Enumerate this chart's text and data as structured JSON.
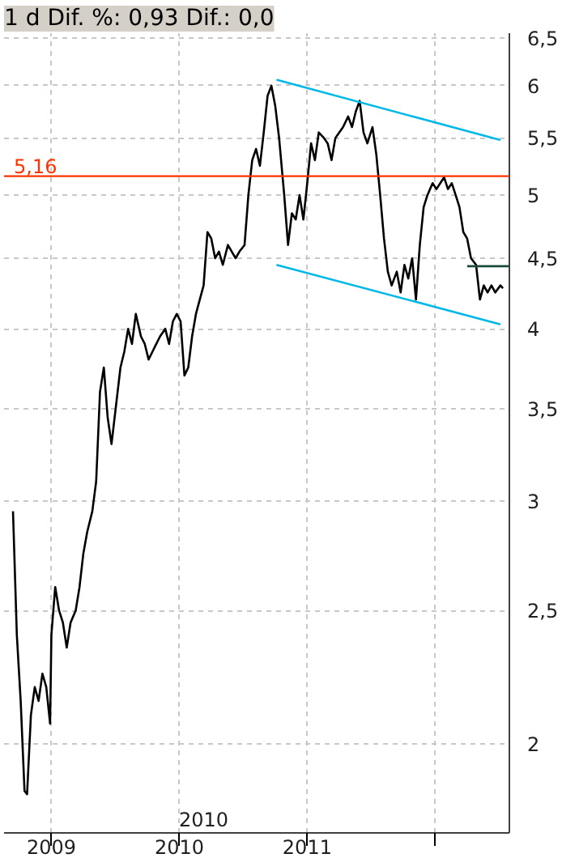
{
  "chart_data": {
    "type": "line",
    "title": "1 d Dif. %: 0,93 Dif.: 0,0",
    "log": "y",
    "grid": true,
    "xlim": [
      2008.63,
      2012.58
    ],
    "ylim": [
      1.725,
      6.55
    ],
    "xticks": [
      {
        "value": 2009,
        "label": "2009"
      },
      {
        "value": 2010,
        "label": "2010"
      },
      {
        "value": 2011,
        "label": "2011"
      },
      {
        "value": 2012,
        "label": null
      }
    ],
    "yticks": [
      {
        "value": 2,
        "label": "2"
      },
      {
        "value": 2.5,
        "label": "2,5"
      },
      {
        "value": 3,
        "label": "3"
      },
      {
        "value": 3.5,
        "label": "3,5"
      },
      {
        "value": 4,
        "label": "4"
      },
      {
        "value": 4.5,
        "label": "4,5"
      },
      {
        "value": 5,
        "label": "5"
      },
      {
        "value": 5.5,
        "label": "5,5"
      },
      {
        "value": 6,
        "label": "6"
      },
      {
        "value": 6.5,
        "label": "6,5"
      }
    ],
    "ref_lines": [
      {
        "axis": "y",
        "value": 5.16,
        "label": "5,16",
        "color": "#ff3300"
      }
    ],
    "annotations": [
      "2010"
    ],
    "series": [
      {
        "color": "#000000",
        "x": [
          2008.7,
          2008.73,
          2008.76,
          2008.79,
          2008.81,
          2008.84,
          2008.87,
          2008.9,
          2008.93,
          2008.96,
          2008.99,
          2009.0,
          2009.03,
          2009.06,
          2009.09,
          2009.12,
          2009.15,
          2009.19,
          2009.22,
          2009.25,
          2009.28,
          2009.32,
          2009.35,
          2009.38,
          2009.41,
          2009.44,
          2009.47,
          2009.51,
          2009.54,
          2009.57,
          2009.6,
          2009.63,
          2009.66,
          2009.7,
          2009.73,
          2009.76,
          2009.79,
          2009.82,
          2009.85,
          2009.89,
          2009.92,
          2009.95,
          2009.98,
          2010.01,
          2010.04,
          2010.07,
          2010.1,
          2010.13,
          2010.16,
          2010.19,
          2010.22,
          2010.25,
          2010.28,
          2010.31,
          2010.34,
          2010.38,
          2010.41,
          2010.44,
          2010.47,
          2010.51,
          2010.54,
          2010.57,
          2010.6,
          2010.63,
          2010.66,
          2010.69,
          2010.72,
          2010.75,
          2010.78,
          2010.82,
          2010.85,
          2010.88,
          2010.91,
          2010.94,
          2010.97,
          2011.0,
          2011.03,
          2011.06,
          2011.09,
          2011.13,
          2011.16,
          2011.19,
          2011.22,
          2011.25,
          2011.28,
          2011.32,
          2011.35,
          2011.38,
          2011.41,
          2011.44,
          2011.47,
          2011.51,
          2011.54,
          2011.57,
          2011.6,
          2011.63,
          2011.66,
          2011.7,
          2011.73,
          2011.76,
          2011.79,
          2011.82,
          2011.85,
          2011.88,
          2011.91,
          2011.94,
          2011.98,
          2012.01,
          2012.04,
          2012.07,
          2012.1,
          2012.13,
          2012.16,
          2012.19,
          2012.22,
          2012.25,
          2012.28,
          2012.32,
          2012.35,
          2012.38,
          2012.41,
          2012.44,
          2012.47,
          2012.51,
          2012.53
        ],
        "values": [
          2.95,
          2.4,
          2.15,
          1.85,
          1.84,
          2.1,
          2.2,
          2.15,
          2.25,
          2.2,
          2.07,
          2.4,
          2.6,
          2.5,
          2.45,
          2.35,
          2.45,
          2.5,
          2.6,
          2.75,
          2.85,
          2.95,
          3.1,
          3.6,
          3.75,
          3.45,
          3.3,
          3.55,
          3.75,
          3.85,
          4.0,
          3.9,
          4.1,
          3.95,
          3.9,
          3.8,
          3.85,
          3.9,
          3.95,
          4.0,
          3.9,
          4.05,
          4.1,
          4.05,
          3.7,
          3.75,
          3.95,
          4.1,
          4.2,
          4.3,
          4.7,
          4.65,
          4.5,
          4.55,
          4.45,
          4.6,
          4.55,
          4.5,
          4.55,
          4.6,
          5.0,
          5.3,
          5.4,
          5.25,
          5.55,
          5.9,
          6.0,
          5.8,
          5.5,
          5.0,
          4.6,
          4.85,
          4.8,
          5.0,
          4.8,
          5.1,
          5.45,
          5.3,
          5.55,
          5.5,
          5.45,
          5.3,
          5.5,
          5.55,
          5.6,
          5.7,
          5.6,
          5.75,
          5.85,
          5.55,
          5.45,
          5.6,
          5.35,
          5.0,
          4.65,
          4.4,
          4.3,
          4.4,
          4.25,
          4.45,
          4.35,
          4.5,
          4.2,
          4.6,
          4.9,
          5.0,
          5.1,
          5.05,
          5.1,
          5.15,
          5.05,
          5.1,
          5.0,
          4.9,
          4.7,
          4.65,
          4.5,
          4.45,
          4.2,
          4.3,
          4.25,
          4.3,
          4.25,
          4.3,
          4.28
        ]
      },
      {
        "color": "#00b8e8",
        "x": [
          2010.76,
          2012.51
        ],
        "values": [
          6.06,
          5.48
        ]
      },
      {
        "color": "#00b8e8",
        "x": [
          2010.76,
          2012.51
        ],
        "values": [
          4.45,
          4.03
        ]
      },
      {
        "color": "#1a4a3a",
        "x": [
          2012.25,
          2012.58
        ],
        "values": [
          4.44,
          4.44
        ]
      }
    ]
  }
}
